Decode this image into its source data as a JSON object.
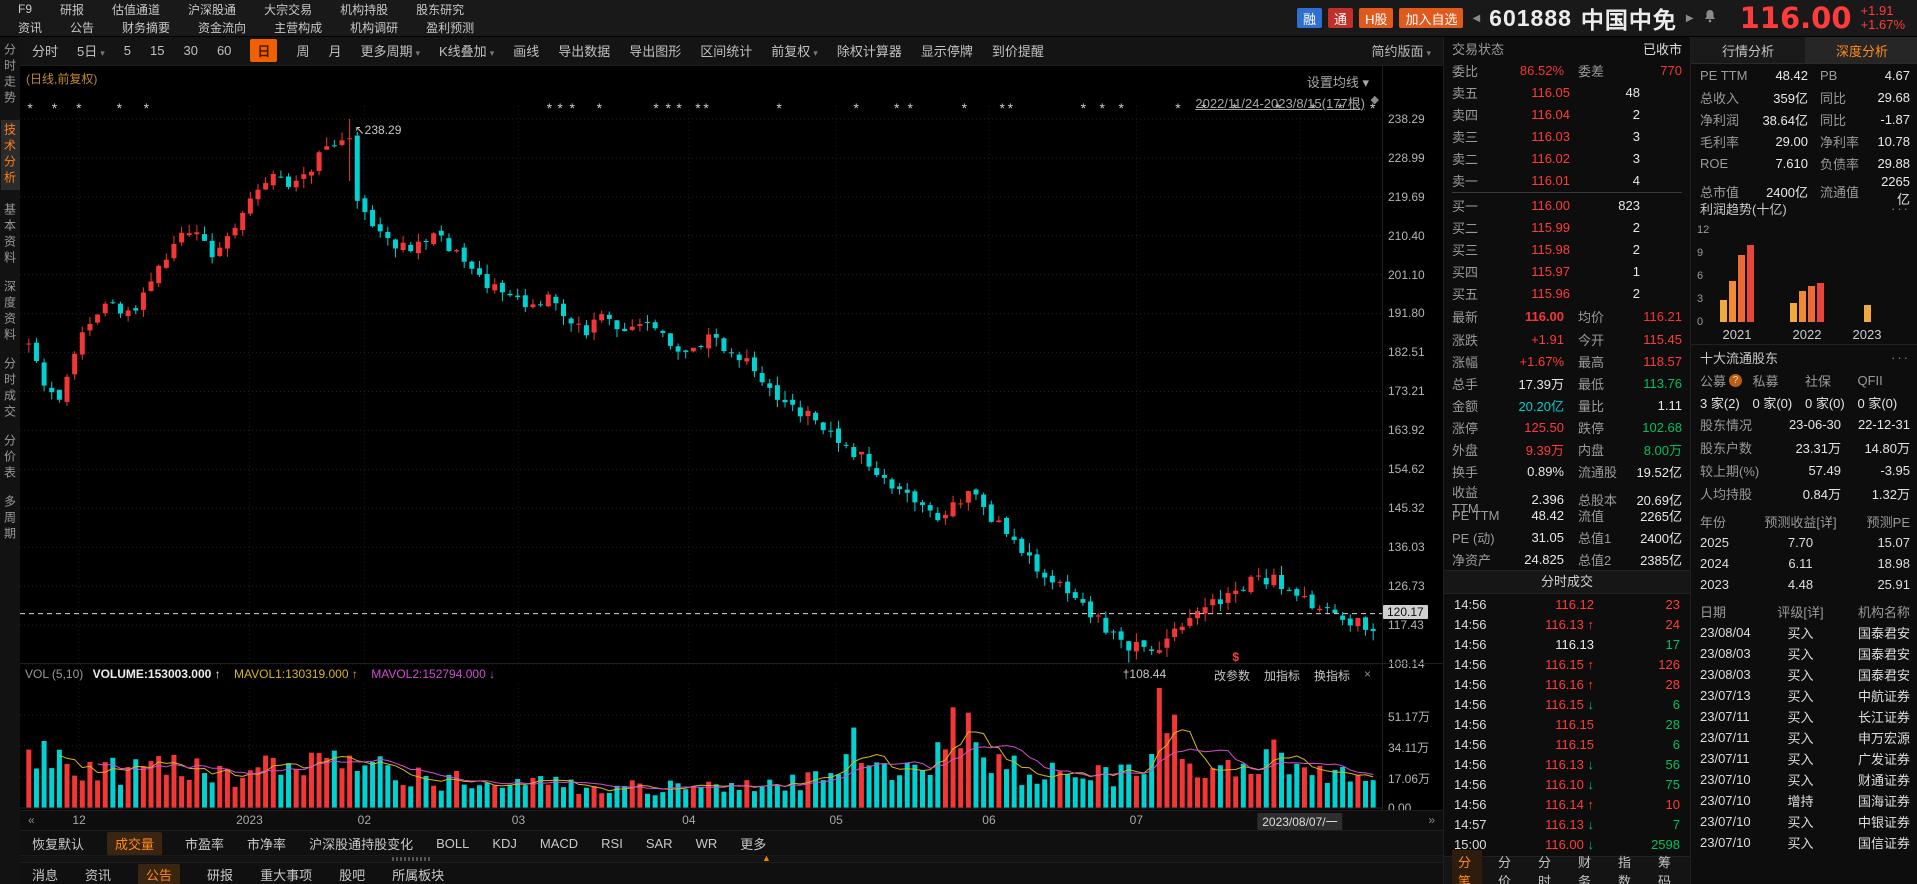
{
  "colors": {
    "up": "#f43636",
    "down": "#00d2d2",
    "accent": "#ff8a1e",
    "red": "#ff3b3b",
    "green": "#00c060",
    "cyan": "#00cfcf",
    "white": "#e8e8e8",
    "mavol1": "#d8b61c",
    "mavol2": "#d24dd2"
  },
  "header": {
    "menu_rows": [
      [
        "F9",
        "研报",
        "估值通道",
        "沪深股通",
        "大宗交易",
        "机构持股",
        "股东研究"
      ],
      [
        "资讯",
        "公告",
        "财务摘要",
        "资金流向",
        "主营构成",
        "机构调研",
        "盈利预测"
      ]
    ],
    "badges": [
      {
        "label": "融",
        "color": "#2e6fd0"
      },
      {
        "label": "通",
        "color": "#c03028"
      },
      {
        "label": "H股",
        "color": "#e05a1e"
      },
      {
        "label": "加入自选",
        "color": "#e05a1e"
      }
    ],
    "left_arrow": "◀",
    "right_arrow": "▶",
    "stock_code": "601888",
    "stock_name": "中国中免",
    "price": "116.00",
    "change": "+1.91",
    "change_pct": "+1.67%"
  },
  "toolbar": {
    "items": [
      {
        "label": "分时"
      },
      {
        "label": "5日",
        "caret": true
      },
      {
        "label": "5"
      },
      {
        "label": "15"
      },
      {
        "label": "30"
      },
      {
        "label": "60"
      },
      {
        "label": "日",
        "active": true
      },
      {
        "label": "周"
      },
      {
        "label": "月"
      },
      {
        "label": "更多周期",
        "caret": true
      },
      {
        "label": "K线叠加",
        "caret": true
      },
      {
        "label": "画线"
      },
      {
        "label": "导出数据"
      },
      {
        "label": "导出图形"
      },
      {
        "label": "区间统计"
      },
      {
        "label": "前复权",
        "caret": true
      },
      {
        "label": "除权计算器"
      },
      {
        "label": "显示停牌"
      },
      {
        "label": "到价提醒"
      }
    ],
    "right": "简约版面"
  },
  "sidebar": {
    "items": [
      {
        "label": "分时走势"
      },
      {
        "label": "技术分析",
        "active": true
      },
      {
        "label": "基本资料"
      },
      {
        "label": "深度资料"
      },
      {
        "label": "分时成交"
      },
      {
        "label": "分价表"
      },
      {
        "label": "多周期"
      }
    ]
  },
  "chart": {
    "corner_label": "(日线,前复权)",
    "set_ma": "设置均线 ▾",
    "range_label": "2022/11/24-2023/8/15(177根)",
    "range_marker": "◆",
    "event_mark_glyph": "*",
    "y_labels": [
      "238.29",
      "228.99",
      "219.69",
      "210.40",
      "201.10",
      "191.80",
      "182.51",
      "173.21",
      "163.92",
      "154.62",
      "145.32",
      "136.03",
      "126.73",
      "117.43",
      "108.14"
    ],
    "price_box": "120.17",
    "high_annotation": "↖238.29",
    "low_annotation": "†108.44",
    "dollar_marker": "$",
    "x_labels": [
      {
        "t": "12",
        "f": 0.04
      },
      {
        "t": "2023",
        "f": 0.166
      },
      {
        "t": "02",
        "f": 0.251
      },
      {
        "t": "03",
        "f": 0.365
      },
      {
        "t": "04",
        "f": 0.491
      },
      {
        "t": "05",
        "f": 0.6
      },
      {
        "t": "06",
        "f": 0.713
      },
      {
        "t": "07",
        "f": 0.822
      },
      {
        "t": "2023/08/07/一",
        "f": 0.943,
        "boxed": true
      }
    ],
    "x_left_arrow": "«",
    "x_right_arrow": "»",
    "vol_header": {
      "name": "VOL (5,10)",
      "volume": "VOLUME:153003.000 ↑",
      "mavol1": "MAVOL1:130319.000 ↑",
      "mavol2": "MAVOL2:152794.000 ↓"
    },
    "vol_controls": [
      "改参数",
      "加指标",
      "换指标"
    ],
    "vol_close": "×",
    "vol_y_labels": [
      {
        "t": "51.17万",
        "v": 511700
      },
      {
        "t": "34.11万",
        "v": 341100
      },
      {
        "t": "17.06万",
        "v": 170600
      },
      {
        "t": "0.00",
        "v": 0
      }
    ]
  },
  "chart_data": {
    "type": "candlestick+volume",
    "count": 177,
    "date_range": "2022/11/24-2023/8/15",
    "price_axis": [
      108.14,
      238.29
    ],
    "high_point": {
      "index": 42,
      "value": 238.29
    },
    "low_point": {
      "index": 144,
      "value": 108.44
    },
    "last_close": 116.0,
    "price_line": 120.17,
    "vol_axis_max": 682000,
    "close_anchors": [
      [
        0.0,
        184
      ],
      [
        0.01,
        176
      ],
      [
        0.022,
        170
      ],
      [
        0.04,
        188
      ],
      [
        0.06,
        196
      ],
      [
        0.075,
        191
      ],
      [
        0.09,
        200
      ],
      [
        0.105,
        207
      ],
      [
        0.12,
        212
      ],
      [
        0.135,
        206
      ],
      [
        0.15,
        212
      ],
      [
        0.165,
        218
      ],
      [
        0.18,
        224
      ],
      [
        0.2,
        222
      ],
      [
        0.215,
        229
      ],
      [
        0.232,
        233
      ],
      [
        0.242,
        220
      ],
      [
        0.255,
        213
      ],
      [
        0.27,
        209
      ],
      [
        0.285,
        206
      ],
      [
        0.3,
        211
      ],
      [
        0.315,
        207
      ],
      [
        0.33,
        201
      ],
      [
        0.35,
        198
      ],
      [
        0.37,
        194
      ],
      [
        0.385,
        196
      ],
      [
        0.4,
        191
      ],
      [
        0.415,
        188
      ],
      [
        0.43,
        191
      ],
      [
        0.445,
        187
      ],
      [
        0.46,
        190
      ],
      [
        0.475,
        185
      ],
      [
        0.49,
        182
      ],
      [
        0.505,
        186
      ],
      [
        0.52,
        184
      ],
      [
        0.535,
        180
      ],
      [
        0.55,
        175
      ],
      [
        0.565,
        170
      ],
      [
        0.58,
        167
      ],
      [
        0.595,
        163
      ],
      [
        0.61,
        160
      ],
      [
        0.625,
        156
      ],
      [
        0.64,
        152
      ],
      [
        0.655,
        149
      ],
      [
        0.668,
        146
      ],
      [
        0.68,
        143
      ],
      [
        0.692,
        147
      ],
      [
        0.703,
        150
      ],
      [
        0.715,
        144
      ],
      [
        0.728,
        139
      ],
      [
        0.742,
        134
      ],
      [
        0.755,
        130
      ],
      [
        0.768,
        127
      ],
      [
        0.78,
        124
      ],
      [
        0.792,
        120
      ],
      [
        0.805,
        116
      ],
      [
        0.815,
        112
      ],
      [
        0.825,
        114
      ],
      [
        0.838,
        112
      ],
      [
        0.85,
        115
      ],
      [
        0.862,
        118
      ],
      [
        0.875,
        121
      ],
      [
        0.888,
        124
      ],
      [
        0.9,
        126
      ],
      [
        0.912,
        128
      ],
      [
        0.925,
        129
      ],
      [
        0.938,
        126
      ],
      [
        0.95,
        123
      ],
      [
        0.962,
        121
      ],
      [
        0.975,
        119
      ],
      [
        0.988,
        118
      ],
      [
        1.0,
        116.5
      ]
    ],
    "vol_anchors_wan": [
      [
        0.0,
        28
      ],
      [
        0.03,
        27
      ],
      [
        0.06,
        20
      ],
      [
        0.1,
        22
      ],
      [
        0.15,
        17
      ],
      [
        0.2,
        25
      ],
      [
        0.24,
        30
      ],
      [
        0.28,
        17
      ],
      [
        0.33,
        14
      ],
      [
        0.38,
        13
      ],
      [
        0.43,
        12
      ],
      [
        0.48,
        11
      ],
      [
        0.52,
        11
      ],
      [
        0.56,
        13
      ],
      [
        0.6,
        16
      ],
      [
        0.615,
        40
      ],
      [
        0.63,
        19
      ],
      [
        0.655,
        23
      ],
      [
        0.68,
        30
      ],
      [
        0.692,
        52
      ],
      [
        0.705,
        26
      ],
      [
        0.73,
        21
      ],
      [
        0.75,
        19
      ],
      [
        0.77,
        17
      ],
      [
        0.79,
        16
      ],
      [
        0.81,
        19
      ],
      [
        0.83,
        17
      ],
      [
        0.845,
        60
      ],
      [
        0.86,
        23
      ],
      [
        0.88,
        19
      ],
      [
        0.9,
        25
      ],
      [
        0.915,
        29
      ],
      [
        0.93,
        33
      ],
      [
        0.95,
        21
      ],
      [
        0.97,
        17
      ],
      [
        1.0,
        15.3
      ]
    ],
    "event_marks_frac": [
      0.004,
      0.022,
      0.04,
      0.07,
      0.09,
      0.388,
      0.396,
      0.405,
      0.425,
      0.467,
      0.476,
      0.484,
      0.498,
      0.504,
      0.558,
      0.615,
      0.645,
      0.655,
      0.695,
      0.723,
      0.729,
      0.783,
      0.797,
      0.811,
      0.853,
      0.872,
      0.895,
      0.927,
      0.953,
      0.973,
      0.997
    ],
    "profit_trend": {
      "type": "bar",
      "title": "利润趋势(十亿)",
      "ymax": 12,
      "y_ticks": [
        12,
        9,
        6,
        3,
        0
      ],
      "groups": [
        {
          "year": "2021",
          "values": [
            2.9,
            5.4,
            8.7,
            10.0
          ]
        },
        {
          "year": "2022",
          "values": [
            2.5,
            4.1,
            4.7,
            5.1
          ]
        },
        {
          "year": "2023",
          "values": [
            2.2
          ]
        }
      ]
    }
  },
  "quote": {
    "status_label": "交易状态",
    "status_value": "已收市",
    "weibi_label": "委比",
    "weibi": "86.52%",
    "weicha_label": "委差",
    "weicha": "770",
    "asks": [
      {
        "label": "卖五",
        "price": "116.05",
        "vol": "48"
      },
      {
        "label": "卖四",
        "price": "116.04",
        "vol": "2"
      },
      {
        "label": "卖三",
        "price": "116.03",
        "vol": "3"
      },
      {
        "label": "卖二",
        "price": "116.02",
        "vol": "3"
      },
      {
        "label": "卖一",
        "price": "116.01",
        "vol": "4"
      }
    ],
    "bids": [
      {
        "label": "买一",
        "price": "116.00",
        "vol": "823"
      },
      {
        "label": "买二",
        "price": "115.99",
        "vol": "2"
      },
      {
        "label": "买三",
        "price": "115.98",
        "vol": "2"
      },
      {
        "label": "买四",
        "price": "115.97",
        "vol": "1"
      },
      {
        "label": "买五",
        "price": "115.96",
        "vol": "2"
      }
    ],
    "latest_label": "最新",
    "latest": "116.00",
    "avg_label": "均价",
    "avg": "116.21",
    "kv_rows": [
      {
        "k1": "涨跌",
        "v1": "+1.91",
        "c1": "red",
        "k2": "今开",
        "v2": "115.45",
        "c2": "red"
      },
      {
        "k1": "涨幅",
        "v1": "+1.67%",
        "c1": "red",
        "k2": "最高",
        "v2": "118.57",
        "c2": "red"
      },
      {
        "k1": "总手",
        "v1": "17.39万",
        "c1": "white",
        "k2": "最低",
        "v2": "113.76",
        "c2": "green"
      },
      {
        "k1": "金额",
        "v1": "20.20亿",
        "c1": "cyan",
        "k2": "量比",
        "v2": "1.11",
        "c2": "white"
      },
      {
        "k1": "涨停",
        "v1": "125.50",
        "c1": "red",
        "k2": "跌停",
        "v2": "102.68",
        "c2": "green"
      },
      {
        "k1": "外盘",
        "v1": "9.39万",
        "c1": "red",
        "k2": "内盘",
        "v2": "8.00万",
        "c2": "green"
      },
      {
        "k1": "换手",
        "v1": "0.89%",
        "c1": "white",
        "k2": "流通股",
        "v2": "19.52亿",
        "c2": "white"
      },
      {
        "k1": "收益TTM",
        "v1": "2.396",
        "c1": "white",
        "k2": "总股本",
        "v2": "20.69亿",
        "c2": "white"
      },
      {
        "k1": "PE TTM",
        "v1": "48.42",
        "c1": "white",
        "k2": "流值",
        "v2": "2265亿",
        "c2": "white"
      },
      {
        "k1": "PE (动)",
        "v1": "31.05",
        "c1": "white",
        "k2": "总值1",
        "v2": "2400亿",
        "c2": "white"
      },
      {
        "k1": "净资产",
        "v1": "24.825",
        "c1": "white",
        "k2": "总值2",
        "v2": "2385亿",
        "c2": "white"
      }
    ]
  },
  "ticks": {
    "title": "分时成交",
    "rows": [
      {
        "time": "14:56",
        "price": "116.12",
        "dir": "",
        "vol": "23",
        "pc": "red",
        "vc": "red"
      },
      {
        "time": "14:56",
        "price": "116.13",
        "dir": "up",
        "vol": "24",
        "pc": "red",
        "vc": "red"
      },
      {
        "time": "14:56",
        "price": "116.13",
        "dir": "",
        "vol": "17",
        "pc": "white",
        "vc": "green"
      },
      {
        "time": "14:56",
        "price": "116.15",
        "dir": "up",
        "vol": "126",
        "pc": "red",
        "vc": "red"
      },
      {
        "time": "14:56",
        "price": "116.16",
        "dir": "up",
        "vol": "28",
        "pc": "red",
        "vc": "red"
      },
      {
        "time": "14:56",
        "price": "116.15",
        "dir": "down",
        "vol": "6",
        "pc": "red",
        "vc": "green"
      },
      {
        "time": "14:56",
        "price": "116.15",
        "dir": "",
        "vol": "28",
        "pc": "red",
        "vc": "green"
      },
      {
        "time": "14:56",
        "price": "116.15",
        "dir": "",
        "vol": "6",
        "pc": "red",
        "vc": "green"
      },
      {
        "time": "14:56",
        "price": "116.13",
        "dir": "down",
        "vol": "56",
        "pc": "red",
        "vc": "green"
      },
      {
        "time": "14:56",
        "price": "116.10",
        "dir": "down",
        "vol": "75",
        "pc": "red",
        "vc": "green"
      },
      {
        "time": "14:56",
        "price": "116.14",
        "dir": "up",
        "vol": "10",
        "pc": "red",
        "vc": "red"
      },
      {
        "time": "14:57",
        "price": "116.13",
        "dir": "down",
        "vol": "7",
        "pc": "red",
        "vc": "green"
      },
      {
        "time": "15:00",
        "price": "116.00",
        "dir": "down",
        "vol": "2598",
        "pc": "red",
        "vc": "green"
      }
    ],
    "tabs": [
      {
        "label": "分笔",
        "active": true
      },
      {
        "label": "分价"
      },
      {
        "label": "分时"
      },
      {
        "label": "财务"
      },
      {
        "label": "指数"
      },
      {
        "label": "筹码"
      }
    ]
  },
  "panel": {
    "tabs": [
      {
        "label": "行情分析"
      },
      {
        "label": "深度分析",
        "active": true
      }
    ],
    "kv_rows": [
      {
        "k1": "PE TTM",
        "v1": "48.42",
        "k2": "PB",
        "v2": "4.67"
      },
      {
        "k1": "总收入",
        "v1": "359亿",
        "k2": "同比",
        "v2": "29.68"
      },
      {
        "k1": "净利润",
        "v1": "38.64亿",
        "k2": "同比",
        "v2": "-1.87"
      },
      {
        "k1": "毛利率",
        "v1": "29.00",
        "k2": "净利率",
        "v2": "10.78"
      },
      {
        "k1": "ROE",
        "v1": "7.610",
        "k2": "负债率",
        "v2": "29.88"
      },
      {
        "k1": "总市值",
        "v1": "2400亿",
        "k2": "流通值",
        "v2": "2265亿"
      }
    ],
    "profit_title": "利润趋势(十亿)",
    "menu_dots": "···",
    "profit_bar_colors": [
      "#f2a93c",
      "#f08a33",
      "#ee6a35",
      "#e9463b"
    ],
    "holders": {
      "title": "十大流通股东",
      "cols": [
        {
          "label": "公募",
          "help": true
        },
        {
          "label": "私募"
        },
        {
          "label": "社保"
        },
        {
          "label": "QFII"
        }
      ],
      "counts": [
        "3 家(2)",
        "0 家(0)",
        "0 家(0)",
        "0 家(0)"
      ],
      "rows": [
        {
          "k": "股东情况",
          "a": "23-06-30",
          "b": "22-12-31"
        },
        {
          "k": "股东户数",
          "a": "23.31万",
          "b": "14.80万"
        },
        {
          "k": "较上期(%)",
          "a": "57.49",
          "b": "-3.95"
        },
        {
          "k": "人均持股",
          "a": "0.84万",
          "b": "1.32万"
        }
      ]
    },
    "forecast": {
      "headers": [
        "年份",
        "预测收益[详]",
        "预测PE"
      ],
      "rows": [
        [
          "2025",
          "7.70",
          "15.07"
        ],
        [
          "2024",
          "6.11",
          "18.98"
        ],
        [
          "2023",
          "4.48",
          "25.91"
        ]
      ]
    },
    "ratings": {
      "headers": [
        "日期",
        "评级[详]",
        "机构名称"
      ],
      "rows": [
        [
          "23/08/04",
          "买入",
          "国泰君安"
        ],
        [
          "23/08/03",
          "买入",
          "国泰君安"
        ],
        [
          "23/08/03",
          "买入",
          "国泰君安"
        ],
        [
          "23/07/13",
          "买入",
          "中航证券"
        ],
        [
          "23/07/11",
          "买入",
          "长江证券"
        ],
        [
          "23/07/11",
          "买入",
          "申万宏源"
        ],
        [
          "23/07/11",
          "买入",
          "广发证券"
        ],
        [
          "23/07/10",
          "买入",
          "财通证券"
        ],
        [
          "23/07/10",
          "增持",
          "国海证券"
        ],
        [
          "23/07/10",
          "买入",
          "中银证券"
        ],
        [
          "23/07/10",
          "买入",
          "国信证券"
        ]
      ]
    }
  },
  "bottom": {
    "indicators": [
      {
        "label": "恢复默认"
      },
      {
        "label": "成交量",
        "active": true
      },
      {
        "label": "市盈率"
      },
      {
        "label": "市净率"
      },
      {
        "label": "沪深股通持股变化"
      },
      {
        "label": "BOLL"
      },
      {
        "label": "KDJ"
      },
      {
        "label": "MACD"
      },
      {
        "label": "RSI"
      },
      {
        "label": "SAR"
      },
      {
        "label": "WR"
      },
      {
        "label": "更多"
      }
    ],
    "news_tabs": [
      {
        "label": "消息"
      },
      {
        "label": "资讯"
      },
      {
        "label": "公告",
        "active": true
      },
      {
        "label": "研报"
      },
      {
        "label": "重大事项"
      },
      {
        "label": "股吧"
      },
      {
        "label": "所属板块"
      }
    ]
  }
}
